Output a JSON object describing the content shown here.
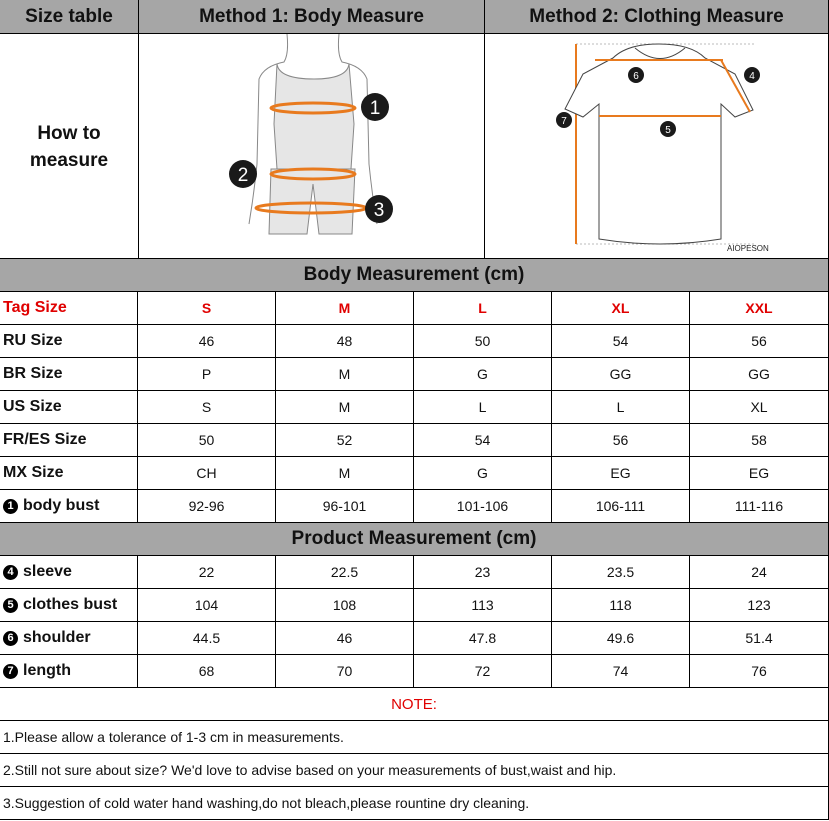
{
  "header": {
    "size_table": "Size table",
    "method1": "Method 1: Body  Measure",
    "method2": "Method 2: Clothing Measure"
  },
  "how_to_measure": "How to measure",
  "brand_watermark": "AIOPESON",
  "diagram_markers": {
    "body": [
      "1",
      "2",
      "3"
    ],
    "clothing": [
      "4",
      "5",
      "6",
      "7"
    ]
  },
  "accent_color": "#e87a1e",
  "body_section_title": "Body Measurement (cm)",
  "product_section_title": "Product Measurement (cm)",
  "tag_row": {
    "label": "Tag Size",
    "sizes": [
      "S",
      "M",
      "L",
      "XL",
      "XXL"
    ]
  },
  "body_rows": [
    {
      "label": "RU Size",
      "values": [
        "46",
        "48",
        "50",
        "54",
        "56"
      ]
    },
    {
      "label": "BR Size",
      "values": [
        "P",
        "M",
        "G",
        "GG",
        "GG"
      ]
    },
    {
      "label": "US Size",
      "values": [
        "S",
        "M",
        "L",
        "L",
        "XL"
      ]
    },
    {
      "label": "FR/ES Size",
      "values": [
        "50",
        "52",
        "54",
        "56",
        "58"
      ]
    },
    {
      "label": "MX Size",
      "values": [
        "CH",
        "M",
        "G",
        "EG",
        "EG"
      ]
    },
    {
      "marker": "1",
      "label": "body bust",
      "values": [
        "92-96",
        "96-101",
        "101-106",
        "106-111",
        "111-116"
      ]
    }
  ],
  "product_rows": [
    {
      "marker": "4",
      "label": "sleeve",
      "values": [
        "22",
        "22.5",
        "23",
        "23.5",
        "24"
      ]
    },
    {
      "marker": "5",
      "label": "clothes bust",
      "values": [
        "104",
        "108",
        "113",
        "118",
        "123"
      ]
    },
    {
      "marker": "6",
      "label": "shoulder",
      "values": [
        "44.5",
        "46",
        "47.8",
        "49.6",
        "51.4"
      ]
    },
    {
      "marker": "7",
      "label": "length",
      "values": [
        "68",
        "70",
        "72",
        "74",
        "76"
      ]
    }
  ],
  "note_title": "NOTE:",
  "notes": [
    "1.Please allow a tolerance of 1-3 cm in measurements.",
    "2.Still not sure about size? We'd love to advise based on your measurements of bust,waist and hip.",
    "3.Suggestion of cold water hand washing,do not bleach,please rountine dry cleaning."
  ]
}
